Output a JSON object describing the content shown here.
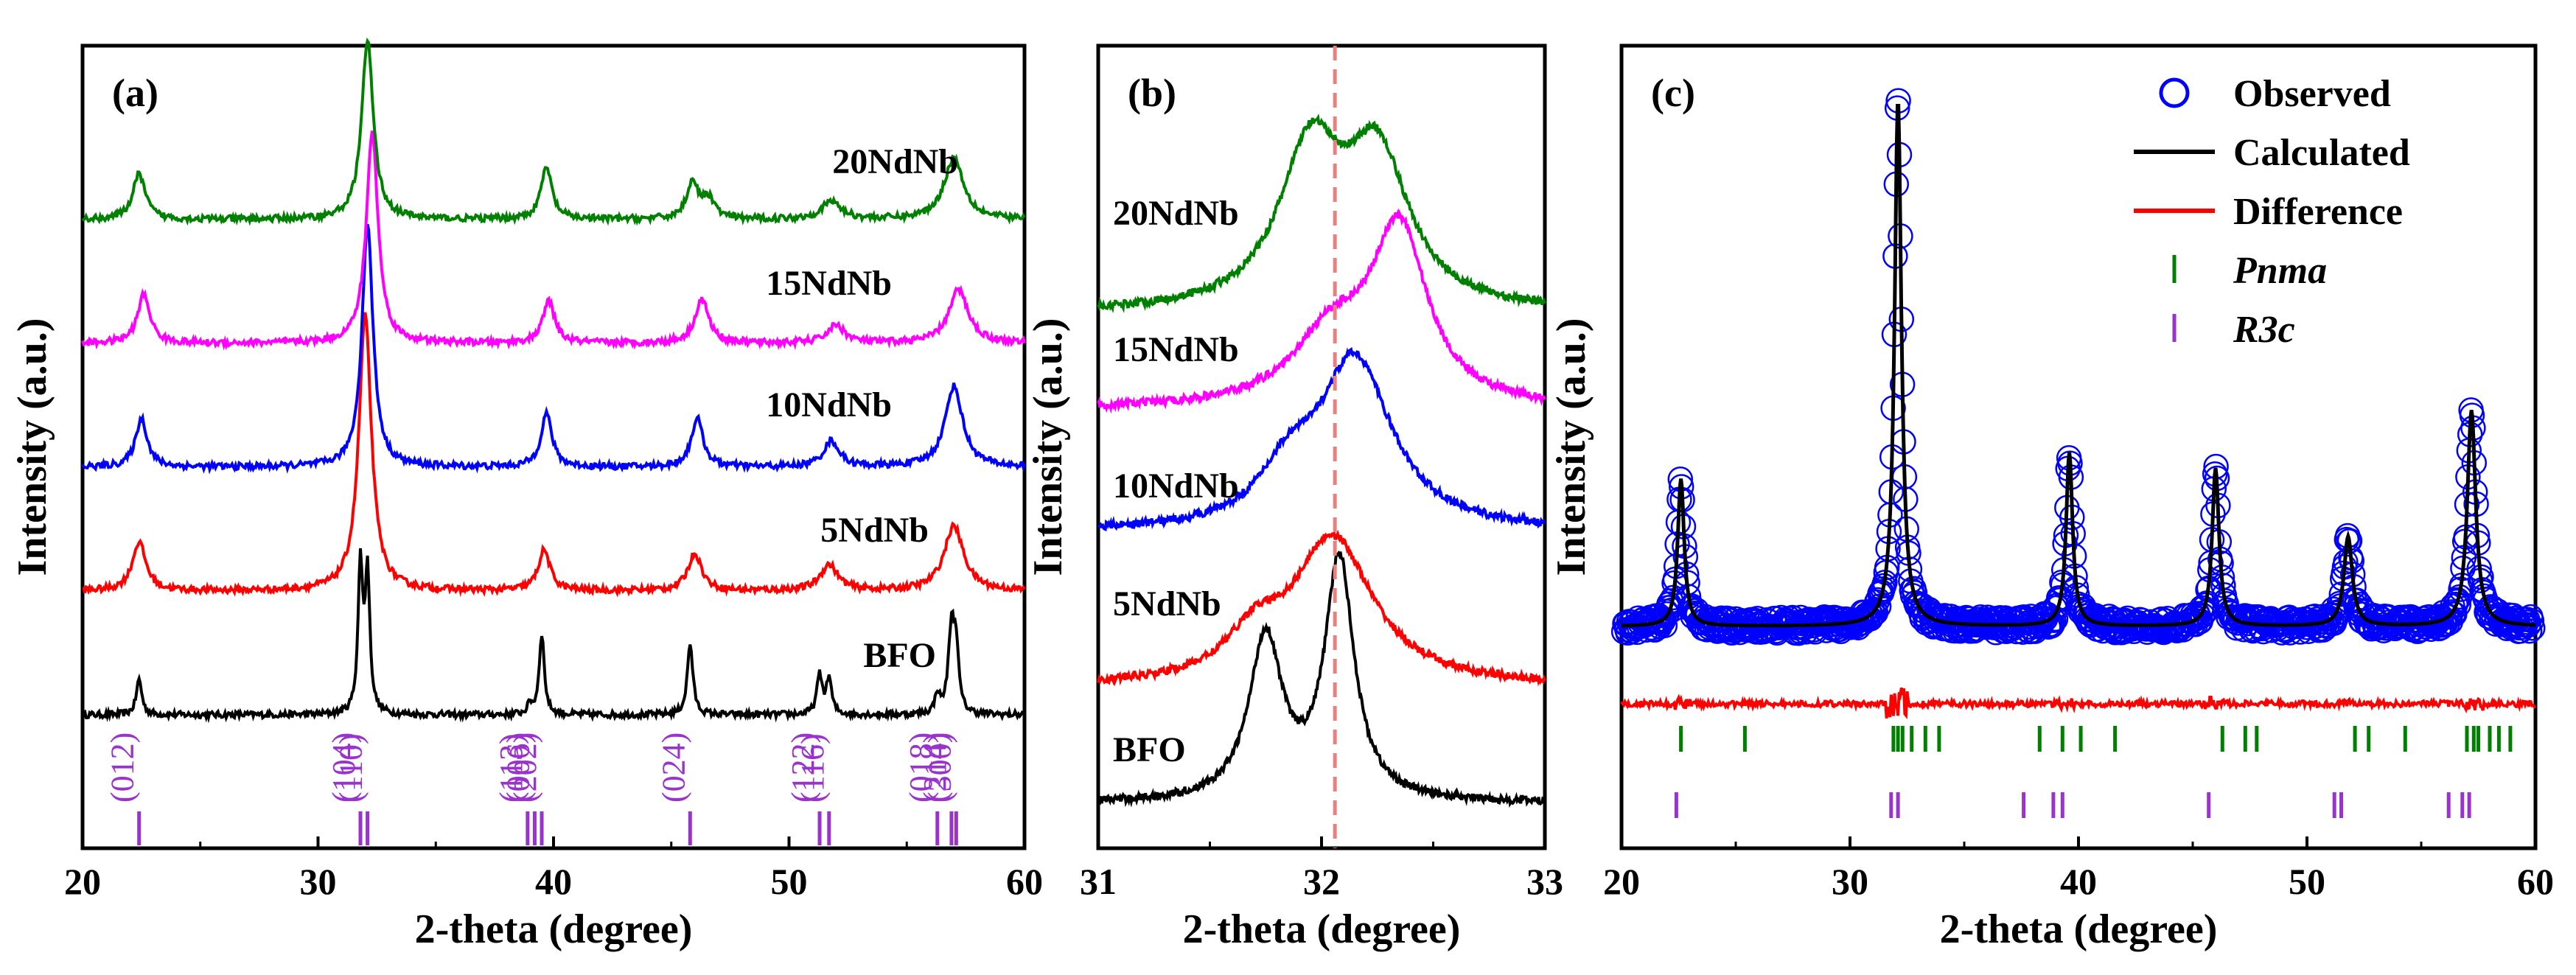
{
  "chart_data": [
    {
      "type": "line",
      "panel": "(a)",
      "xlabel": "2-theta (degree)",
      "ylabel": "Intensity (a.u.)",
      "xlim": [
        20,
        60
      ],
      "xticks": [
        20,
        30,
        40,
        50,
        60
      ],
      "baseline_offsets": [
        0,
        1,
        2,
        3,
        4
      ],
      "series": [
        {
          "name": "BFO",
          "color": "#000000",
          "offset": 0,
          "peaks": [
            [
              22.4,
              0.22,
              0.14
            ],
            [
              31.8,
              0.9,
              0.12
            ],
            [
              32.1,
              0.85,
              0.12
            ],
            [
              39.0,
              0.06,
              0.12
            ],
            [
              39.5,
              0.5,
              0.13
            ],
            [
              45.8,
              0.44,
              0.14
            ],
            [
              51.3,
              0.24,
              0.14
            ],
            [
              51.7,
              0.22,
              0.13
            ],
            [
              56.3,
              0.12,
              0.12
            ],
            [
              56.9,
              0.53,
              0.16
            ],
            [
              57.1,
              0.35,
              0.12
            ]
          ]
        },
        {
          "name": "5NdNb",
          "color": "#ff0000",
          "offset": 1,
          "peaks": [
            [
              22.4,
              0.3,
              0.35
            ],
            [
              32.0,
              1.7,
              0.32
            ],
            [
              39.6,
              0.25,
              0.3
            ],
            [
              46.0,
              0.23,
              0.35
            ],
            [
              51.7,
              0.16,
              0.45
            ],
            [
              57.0,
              0.4,
              0.5
            ]
          ]
        },
        {
          "name": "10NdNb",
          "color": "#0000ff",
          "offset": 2,
          "peaks": [
            [
              22.5,
              0.3,
              0.3
            ],
            [
              32.1,
              1.5,
              0.28
            ],
            [
              39.7,
              0.33,
              0.28
            ],
            [
              46.1,
              0.3,
              0.3
            ],
            [
              51.8,
              0.16,
              0.4
            ],
            [
              57.0,
              0.5,
              0.45
            ]
          ]
        },
        {
          "name": "15NdNb",
          "color": "#ff00ff",
          "offset": 3,
          "peaks": [
            [
              22.6,
              0.3,
              0.32
            ],
            [
              32.3,
              1.3,
              0.3
            ],
            [
              39.8,
              0.26,
              0.3
            ],
            [
              46.3,
              0.27,
              0.35
            ],
            [
              52.0,
              0.11,
              0.45
            ],
            [
              57.2,
              0.33,
              0.5
            ]
          ]
        },
        {
          "name": "20NdNb",
          "color": "#008000",
          "offset": 4,
          "peaks": [
            [
              22.4,
              0.28,
              0.32
            ],
            [
              32.1,
              1.1,
              0.3
            ],
            [
              39.7,
              0.32,
              0.28
            ],
            [
              45.9,
              0.23,
              0.3
            ],
            [
              46.6,
              0.12,
              0.3
            ],
            [
              51.8,
              0.11,
              0.5
            ],
            [
              57.0,
              0.38,
              0.5
            ]
          ]
        }
      ],
      "trace_labels": [
        "BFO",
        "5NdNb",
        "10NdNb",
        "15NdNb",
        "20NdNb"
      ],
      "reflections": [
        {
          "hkl": "(012)",
          "x": 22.4
        },
        {
          "hkl": "(104)",
          "x": 31.8
        },
        {
          "hkl": "(110)",
          "x": 32.1
        },
        {
          "hkl": "(113)",
          "x": 38.9
        },
        {
          "hkl": "(006)",
          "x": 39.2
        },
        {
          "hkl": "(202)",
          "x": 39.5
        },
        {
          "hkl": "(024)",
          "x": 45.8
        },
        {
          "hkl": "(122)",
          "x": 51.3
        },
        {
          "hkl": "(116)",
          "x": 51.7
        },
        {
          "hkl": "(018)",
          "x": 56.3
        },
        {
          "hkl": "(214)",
          "x": 56.9
        },
        {
          "hkl": "(300)",
          "x": 57.1
        }
      ],
      "reflection_color": "#9933cc"
    },
    {
      "type": "line",
      "panel": "(b)",
      "xlabel": "2-theta (degree)",
      "ylabel": "Intensity (a.u.)",
      "xlim": [
        31,
        33
      ],
      "xticks": [
        31,
        32,
        33
      ],
      "reference_line": {
        "x": 32.06,
        "color": "#e88080",
        "style": "dashed"
      },
      "series": [
        {
          "name": "BFO",
          "color": "#000000",
          "offset": 0,
          "peaks": [
            [
              31.75,
              1.05,
              0.09
            ],
            [
              32.08,
              1.55,
              0.08
            ]
          ]
        },
        {
          "name": "5NdNb",
          "color": "#ff0000",
          "offset": 0.9,
          "peaks": [
            [
              32.05,
              0.95,
              0.22
            ],
            [
              31.7,
              0.25,
              0.15
            ]
          ]
        },
        {
          "name": "10NdNb",
          "color": "#0000ff",
          "offset": 2.1,
          "peaks": [
            [
              32.15,
              1.1,
              0.2
            ],
            [
              31.85,
              0.3,
              0.15
            ]
          ]
        },
        {
          "name": "15NdNb",
          "color": "#ff00ff",
          "offset": 3.05,
          "peaks": [
            [
              32.35,
              1.1,
              0.15
            ],
            [
              32.05,
              0.45,
              0.22
            ]
          ]
        },
        {
          "name": "20NdNb",
          "color": "#008000",
          "offset": 3.8,
          "peaks": [
            [
              31.95,
              1.0,
              0.17
            ],
            [
              32.25,
              0.95,
              0.17
            ]
          ]
        }
      ],
      "trace_labels": [
        "BFO",
        "5NdNb",
        "10NdNb",
        "15NdNb",
        "20NdNb"
      ]
    },
    {
      "type": "scatter",
      "panel": "(c)",
      "xlabel": "2-theta (degree)",
      "ylabel": "Intensity (a.u.)",
      "xlim": [
        20,
        60
      ],
      "xticks": [
        20,
        30,
        40,
        50,
        60
      ],
      "peaks": [
        [
          22.6,
          0.28,
          0.17
        ],
        [
          32.1,
          1.0,
          0.18
        ],
        [
          39.6,
          0.33,
          0.17
        ],
        [
          46.0,
          0.3,
          0.18
        ],
        [
          51.8,
          0.17,
          0.22
        ],
        [
          57.2,
          0.41,
          0.22
        ]
      ],
      "legend": [
        {
          "label": "Observed",
          "kind": "circle",
          "color": "#0000ff",
          "italic": false
        },
        {
          "label": "Calculated",
          "kind": "line",
          "color": "#000000",
          "italic": false
        },
        {
          "label": "Difference",
          "kind": "line",
          "color": "#ff0000",
          "italic": false
        },
        {
          "label": "Pnma",
          "kind": "tick",
          "color": "#008000",
          "italic": true
        },
        {
          "label": "R3c",
          "kind": "tick",
          "color": "#9933cc",
          "italic": true
        }
      ],
      "pnma_ticks": [
        22.6,
        25.4,
        31.9,
        32.1,
        32.3,
        32.7,
        33.3,
        33.9,
        38.3,
        39.3,
        40.1,
        41.6,
        46.3,
        47.3,
        47.8,
        52.1,
        52.7,
        54.3,
        57.0,
        57.3,
        57.5,
        58.0,
        58.4,
        58.9
      ],
      "r3c_ticks": [
        22.4,
        31.8,
        32.1,
        37.6,
        38.9,
        39.3,
        45.7,
        51.2,
        51.5,
        56.2,
        56.8,
        57.1
      ]
    }
  ]
}
